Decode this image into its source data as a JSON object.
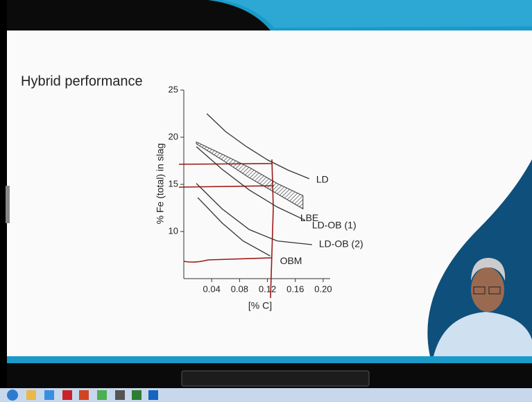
{
  "slide_title": "Hybrid performance",
  "chart_data": {
    "type": "line",
    "xlabel": "[% C]",
    "ylabel": "% Fe (total) in slag",
    "xlim": [
      0,
      0.21
    ],
    "ylim": [
      5,
      25
    ],
    "xticks": [
      0.04,
      0.08,
      0.12,
      0.16,
      {
        "value": 0.2,
        "label": "0.20"
      }
    ],
    "yticks": [
      10,
      15,
      20,
      25
    ],
    "series": [
      {
        "name": "LD",
        "color": "#333333",
        "x": [
          0.033,
          0.06,
          0.09,
          0.12,
          0.15,
          0.18
        ],
        "values": [
          22.5,
          20.6,
          19.0,
          17.6,
          16.5,
          15.6
        ]
      },
      {
        "name": "LBE",
        "color": "#333333",
        "x": [
          0.018,
          0.055,
          0.094,
          0.134,
          0.171
        ],
        "values": [
          19.5,
          18.2,
          16.8,
          15.1,
          13.8
        ],
        "lower": [
          19.3,
          17.6,
          15.7,
          14.0,
          12.4
        ]
      },
      {
        "name": "LD-OB (1)",
        "color": "#333333",
        "x": [
          0.018,
          0.055,
          0.094,
          0.134,
          0.174
        ],
        "values": [
          19.0,
          16.6,
          14.4,
          12.6,
          11.2
        ]
      },
      {
        "name": "LD-OB (2)",
        "color": "#333333",
        "x": [
          0.018,
          0.055,
          0.094,
          0.134,
          0.184
        ],
        "values": [
          15.1,
          12.4,
          10.2,
          9.0,
          8.6
        ]
      },
      {
        "name": "OBM",
        "color": "#333333",
        "x": [
          0.02,
          0.055,
          0.085,
          0.124
        ],
        "values": [
          13.6,
          10.9,
          9.0,
          7.4
        ]
      }
    ]
  }
}
